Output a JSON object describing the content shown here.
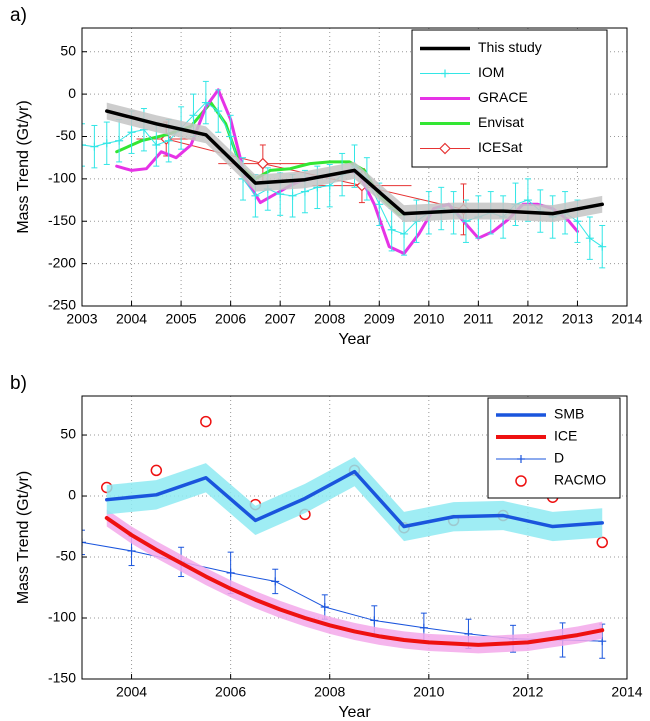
{
  "chart_data": [
    {
      "type": "line",
      "label": "a)",
      "x_label": "Year",
      "y_label": "Mass Trend (Gt/yr)",
      "xlim": [
        2003,
        2014
      ],
      "xticks": [
        2003,
        2004,
        2005,
        2006,
        2007,
        2008,
        2009,
        2010,
        2011,
        2012,
        2013,
        2014
      ],
      "ylim": [
        -250,
        78
      ],
      "yticks": [
        -250,
        -200,
        -150,
        -100,
        -50,
        0,
        50
      ],
      "grid": true,
      "legend": "upper right",
      "series": [
        {
          "name": "This study",
          "color": "#000000",
          "linewidth": 3.5,
          "band": 10,
          "band_color": "#c4c4c4",
          "x": [
            2003.5,
            2004.5,
            2005.5,
            2006.5,
            2007.5,
            2008.5,
            2009.5,
            2010.5,
            2011.5,
            2012.5,
            2013.5
          ],
          "values": [
            -20,
            -35,
            -48,
            -105,
            -101,
            -90,
            -141,
            -138,
            -138,
            -141,
            -130
          ]
        },
        {
          "name": "IOM",
          "color": "#33e6e6",
          "linewidth": 1,
          "marker": "plus",
          "x": [
            2003.0,
            2003.25,
            2003.5,
            2003.75,
            2004.0,
            2004.25,
            2004.5,
            2004.75,
            2005.0,
            2005.25,
            2005.5,
            2005.75,
            2006.0,
            2006.25,
            2006.5,
            2006.75,
            2007.0,
            2007.25,
            2007.5,
            2007.75,
            2008.0,
            2008.25,
            2008.5,
            2008.75,
            2009.0,
            2009.25,
            2009.5,
            2009.75,
            2010.0,
            2010.25,
            2010.5,
            2010.75,
            2011.0,
            2011.25,
            2011.5,
            2011.75,
            2012.0,
            2012.25,
            2012.5,
            2012.75,
            2013.0,
            2013.25,
            2013.5
          ],
          "values": [
            -60,
            -62,
            -58,
            -55,
            -45,
            -42,
            -60,
            -55,
            -40,
            -25,
            -10,
            -20,
            -50,
            -100,
            -120,
            -112,
            -118,
            -120,
            -115,
            -110,
            -108,
            -95,
            -85,
            -100,
            -130,
            -160,
            -165,
            -150,
            -140,
            -135,
            -140,
            -150,
            -145,
            -140,
            -145,
            -130,
            -125,
            -138,
            -145,
            -140,
            -150,
            -170,
            -180
          ],
          "errors": [
            25,
            25,
            25,
            25,
            25,
            25,
            25,
            25,
            25,
            25,
            25,
            25,
            25,
            25,
            25,
            25,
            25,
            25,
            25,
            25,
            25,
            25,
            25,
            25,
            25,
            25,
            25,
            25,
            25,
            25,
            25,
            25,
            25,
            25,
            25,
            25,
            25,
            25,
            25,
            25,
            25,
            25,
            25
          ]
        },
        {
          "name": "GRACE",
          "color": "#e633e6",
          "linewidth": 3,
          "x": [
            2003.7,
            2004.0,
            2004.3,
            2004.6,
            2004.9,
            2005.2,
            2005.5,
            2005.75,
            2006.0,
            2006.3,
            2006.6,
            2006.9,
            2007.2,
            2007.5,
            2007.8,
            2008.1,
            2008.4,
            2008.6,
            2008.9,
            2009.2,
            2009.5,
            2009.8,
            2010.1,
            2010.4,
            2010.7,
            2011.0,
            2011.3,
            2011.6,
            2011.9,
            2012.2,
            2012.5,
            2012.8,
            2013.0
          ],
          "values": [
            -85,
            -90,
            -88,
            -68,
            -75,
            -60,
            -15,
            5,
            -30,
            -100,
            -128,
            -118,
            -108,
            -100,
            -98,
            -95,
            -90,
            -95,
            -130,
            -180,
            -188,
            -165,
            -135,
            -130,
            -150,
            -170,
            -162,
            -148,
            -130,
            -130,
            -135,
            -148,
            -162
          ]
        },
        {
          "name": "Envisat",
          "color": "#33e633",
          "linewidth": 3,
          "x": [
            2003.7,
            2004.2,
            2004.7,
            2005.2,
            2005.6,
            2005.9,
            2006.2,
            2006.5,
            2006.8,
            2007.2,
            2007.6,
            2008.0,
            2008.4,
            2008.7,
            2009.0,
            2009.4,
            2009.8
          ],
          "values": [
            -68,
            -55,
            -48,
            -38,
            -10,
            -35,
            -85,
            -100,
            -90,
            -88,
            -82,
            -80,
            -80,
            -90,
            -120,
            -142,
            -140
          ]
        },
        {
          "name": "ICESat",
          "color": "#e63333",
          "linewidth": 1,
          "marker": "diamond",
          "x": [
            2004.7,
            2006.65,
            2008.65,
            2010.7
          ],
          "values": [
            -53,
            -82,
            -108,
            -136
          ],
          "errors": [
            20,
            22,
            20,
            30
          ],
          "xerr": [
            0.6,
            0.9,
            1.0,
            0
          ]
        }
      ]
    },
    {
      "type": "line",
      "label": "b)",
      "x_label": "Year",
      "y_label": "Mass Trend (Gt/yr)",
      "xlim": [
        2003,
        2014
      ],
      "xticks": [
        2004,
        2006,
        2008,
        2010,
        2012,
        2014
      ],
      "ylim": [
        -150,
        82
      ],
      "yticks": [
        -150,
        -100,
        -50,
        0,
        50
      ],
      "grid": true,
      "legend": "upper right",
      "series": [
        {
          "name": "SMB",
          "color": "#1a55dd",
          "linewidth": 3.5,
          "band": 12,
          "band_color": "#8eeaf2",
          "x": [
            2003.5,
            2004.5,
            2005.5,
            2006.5,
            2007.5,
            2008.5,
            2009.5,
            2010.5,
            2011.5,
            2012.5,
            2013.5
          ],
          "values": [
            -3,
            1,
            15,
            -20,
            -2,
            20,
            -25,
            -17,
            -16,
            -25,
            -22
          ]
        },
        {
          "name": "ICE",
          "color": "#ee1111",
          "linewidth": 4,
          "band": 7,
          "band_color": "#f3a8ea",
          "x": [
            2003.5,
            2004.0,
            2004.5,
            2005.0,
            2005.5,
            2006.0,
            2006.5,
            2007.0,
            2007.5,
            2008.0,
            2008.5,
            2009.0,
            2009.5,
            2010.0,
            2010.5,
            2011.0,
            2011.5,
            2012.0,
            2012.5,
            2013.0,
            2013.5
          ],
          "values": [
            -18,
            -32,
            -44,
            -55,
            -66,
            -76,
            -85,
            -93,
            -100,
            -106,
            -111,
            -115,
            -118,
            -120,
            -121,
            -122,
            -121,
            -120,
            -117,
            -114,
            -110
          ]
        },
        {
          "name": "D",
          "color": "#1a55dd",
          "linewidth": 1,
          "marker": "plus",
          "x": [
            2003.0,
            2004.0,
            2005.0,
            2006.0,
            2006.9,
            2007.9,
            2008.9,
            2009.9,
            2010.8,
            2011.7,
            2012.7,
            2013.5
          ],
          "values": [
            -38,
            -45,
            -54,
            -63,
            -70,
            -91,
            -102,
            -108,
            -113,
            -117,
            -118,
            -119
          ],
          "errors": [
            10,
            12,
            12,
            17,
            10,
            10,
            12,
            12,
            12,
            11,
            14,
            14
          ]
        },
        {
          "name": "RACMO",
          "color": "#ee1111",
          "linewidth": 0,
          "marker": "circle",
          "x": [
            2003.5,
            2004.5,
            2005.5,
            2006.5,
            2007.5,
            2008.5,
            2009.5,
            2010.5,
            2011.5,
            2012.5,
            2013.5
          ],
          "values": [
            7,
            21,
            61,
            -7,
            -15,
            21,
            -26,
            -20,
            -16,
            -1,
            -38
          ]
        }
      ]
    }
  ]
}
